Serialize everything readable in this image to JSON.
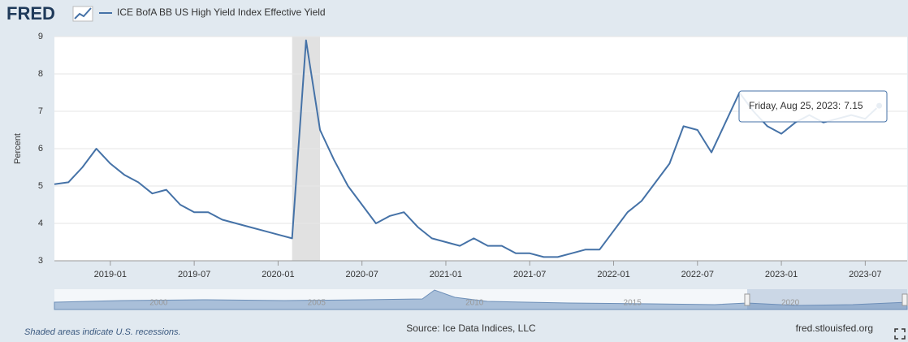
{
  "logo": "FRED",
  "chart_data": {
    "type": "line",
    "title": "ICE BofA BB US High Yield Index Effective Yield",
    "y_label": "Percent",
    "x": [
      "2018-09",
      "2018-10",
      "2018-11",
      "2018-12",
      "2019-01",
      "2019-02",
      "2019-03",
      "2019-04",
      "2019-05",
      "2019-06",
      "2019-07",
      "2019-08",
      "2019-09",
      "2019-10",
      "2019-11",
      "2019-12",
      "2020-01",
      "2020-02",
      "2020-03",
      "2020-04",
      "2020-05",
      "2020-06",
      "2020-07",
      "2020-08",
      "2020-09",
      "2020-10",
      "2020-11",
      "2020-12",
      "2021-01",
      "2021-02",
      "2021-03",
      "2021-04",
      "2021-05",
      "2021-06",
      "2021-07",
      "2021-08",
      "2021-09",
      "2021-10",
      "2021-11",
      "2021-12",
      "2022-01",
      "2022-02",
      "2022-03",
      "2022-04",
      "2022-05",
      "2022-06",
      "2022-07",
      "2022-08",
      "2022-09",
      "2022-10",
      "2022-11",
      "2022-12",
      "2023-01",
      "2023-02",
      "2023-03",
      "2023-04",
      "2023-05",
      "2023-06",
      "2023-07",
      "2023-08"
    ],
    "series": [
      {
        "name": "ICE BofA BB US High Yield Index Effective Yield",
        "color": "#4572a7",
        "values": [
          5.05,
          5.1,
          5.5,
          6.0,
          5.6,
          5.3,
          5.1,
          4.8,
          4.9,
          4.5,
          4.3,
          4.3,
          4.1,
          4.0,
          3.9,
          3.8,
          3.7,
          3.6,
          8.9,
          6.5,
          5.7,
          5.0,
          4.5,
          4.0,
          4.2,
          4.3,
          3.9,
          3.6,
          3.5,
          3.4,
          3.6,
          3.4,
          3.4,
          3.2,
          3.2,
          3.1,
          3.1,
          3.2,
          3.3,
          3.3,
          3.8,
          4.3,
          4.6,
          5.1,
          5.6,
          6.6,
          6.5,
          5.9,
          6.7,
          7.5,
          7.0,
          6.6,
          6.4,
          6.7,
          6.9,
          6.7,
          6.8,
          6.9,
          6.8,
          7.15
        ]
      }
    ],
    "xlim": [
      "2018-09",
      "2023-10"
    ],
    "xticks": [
      "2019-01",
      "2019-07",
      "2020-01",
      "2020-07",
      "2021-01",
      "2021-07",
      "2022-01",
      "2022-07",
      "2023-01",
      "2023-07"
    ],
    "ylim": [
      3,
      9
    ],
    "yticks": [
      3,
      4,
      5,
      6,
      7,
      8,
      9
    ],
    "grid": true,
    "recessions": [
      {
        "start": "2020-02",
        "end": "2020-04"
      }
    ],
    "tooltip": {
      "label": "Friday, Aug 25, 2023:",
      "value": 7.15
    },
    "navigator": {
      "xlim": [
        1996.7,
        2023.7
      ],
      "xticks": [
        2000,
        2005,
        2010,
        2015,
        2020
      ]
    },
    "note": "Shaded areas indicate U.S. recessions.",
    "source": "Source: Ice Data Indices, LLC",
    "site": "fred.stlouisfed.org"
  }
}
